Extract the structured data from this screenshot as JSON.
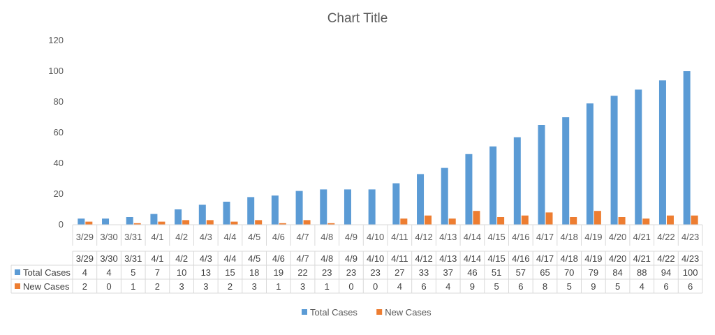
{
  "chart_data": {
    "type": "bar",
    "title": "Chart Title",
    "xlabel": "",
    "ylabel": "",
    "ylim": [
      0,
      120
    ],
    "yticks": [
      0,
      20,
      40,
      60,
      80,
      100,
      120
    ],
    "grid": false,
    "legend_position": "bottom",
    "data_table": true,
    "categories": [
      "3/29",
      "3/30",
      "3/31",
      "4/1",
      "4/2",
      "4/3",
      "4/4",
      "4/5",
      "4/6",
      "4/7",
      "4/8",
      "4/9",
      "4/10",
      "4/11",
      "4/12",
      "4/13",
      "4/14",
      "4/15",
      "4/16",
      "4/17",
      "4/18",
      "4/19",
      "4/20",
      "4/21",
      "4/22",
      "4/23"
    ],
    "series": [
      {
        "name": "Total Cases",
        "color": "#5B9BD5",
        "values": [
          4,
          4,
          5,
          7,
          10,
          13,
          15,
          18,
          19,
          22,
          23,
          23,
          23,
          27,
          33,
          37,
          46,
          51,
          57,
          65,
          70,
          79,
          84,
          88,
          94,
          100
        ]
      },
      {
        "name": "New Cases",
        "color": "#ED7D31",
        "values": [
          2,
          0,
          1,
          2,
          3,
          3,
          2,
          3,
          1,
          3,
          1,
          0,
          0,
          4,
          6,
          4,
          9,
          5,
          6,
          8,
          5,
          9,
          5,
          4,
          6,
          6
        ]
      }
    ]
  }
}
